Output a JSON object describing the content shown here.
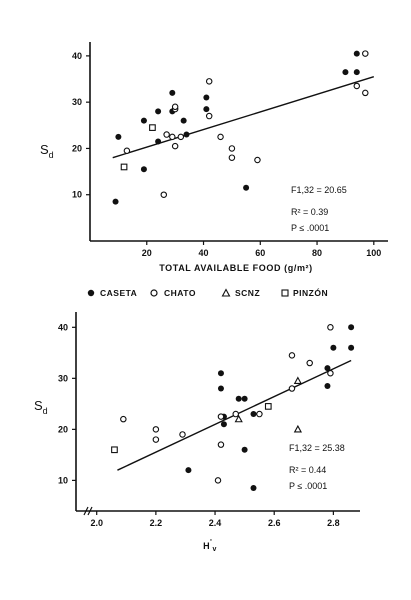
{
  "legend": [
    {
      "label": "CASETA",
      "marker": "filled-circle"
    },
    {
      "label": "CHATO",
      "marker": "open-circle"
    },
    {
      "label": "SCNZ",
      "marker": "open-triangle"
    },
    {
      "label": "PINZÓN",
      "marker": "open-square"
    }
  ],
  "chart_data": [
    {
      "type": "scatter",
      "title": "",
      "xlabel": "TOTAL AVAILABLE FOOD (g/m²)",
      "ylabel": "Sd",
      "xlim": [
        0,
        105
      ],
      "ylim": [
        0,
        43
      ],
      "xticks": [
        20,
        40,
        60,
        80,
        100
      ],
      "yticks": [
        10,
        20,
        30,
        40
      ],
      "xticklabels": [
        "20",
        "40",
        "60",
        "80",
        "100"
      ],
      "yticklabels": [
        "10",
        "20",
        "30",
        "40"
      ],
      "grid": false,
      "stats": {
        "F": "F1,32 = 20.65",
        "R2": "R² = 0.39",
        "P": "P ≤ .0001"
      },
      "fit_line": {
        "x": [
          8,
          100
        ],
        "y": [
          18,
          35.5
        ]
      },
      "series": [
        {
          "name": "CASETA",
          "marker": "filled-circle",
          "points": [
            [
              9,
              8.5
            ],
            [
              10,
              22.5
            ],
            [
              19,
              26
            ],
            [
              19,
              15.5
            ],
            [
              24,
              28
            ],
            [
              24,
              21.5
            ],
            [
              29,
              28
            ],
            [
              29,
              32
            ],
            [
              33,
              26
            ],
            [
              34,
              23
            ],
            [
              41,
              31
            ],
            [
              41,
              28.5
            ],
            [
              55,
              11.5
            ],
            [
              90,
              36.5
            ],
            [
              94,
              40.5
            ],
            [
              94,
              36.5
            ]
          ]
        },
        {
          "name": "CHATO",
          "marker": "open-circle",
          "points": [
            [
              13,
              19.5
            ],
            [
              26,
              10
            ],
            [
              27,
              23
            ],
            [
              29,
              22.5
            ],
            [
              30,
              20.5
            ],
            [
              30,
              28.5
            ],
            [
              30,
              29
            ],
            [
              32,
              22.5
            ],
            [
              42,
              34.5
            ],
            [
              42,
              27
            ],
            [
              46,
              22.5
            ],
            [
              50,
              20
            ],
            [
              50,
              18
            ],
            [
              59,
              17.5
            ],
            [
              94,
              33.5
            ],
            [
              97,
              40.5
            ],
            [
              97,
              32
            ]
          ]
        },
        {
          "name": "PINZÓN",
          "marker": "open-square",
          "points": [
            [
              12,
              16
            ],
            [
              22,
              24.5
            ]
          ]
        }
      ]
    },
    {
      "type": "scatter",
      "title": "",
      "xlabel": "H'v",
      "ylabel": "Sd",
      "xlim": [
        1.93,
        2.89
      ],
      "ylim": [
        4,
        43
      ],
      "xticks": [
        2.0,
        2.2,
        2.4,
        2.6,
        2.8
      ],
      "yticks": [
        10,
        20,
        30,
        40
      ],
      "xticklabels": [
        "2.0",
        "2.2",
        "2.4",
        "2.6",
        "2.8"
      ],
      "yticklabels": [
        "10",
        "20",
        "30",
        "40"
      ],
      "grid": false,
      "stats": {
        "F": "F1,32 = 25.38",
        "R2": "R² = 0.44",
        "P": "P ≤ .0001"
      },
      "fit_line": {
        "x": [
          2.07,
          2.86
        ],
        "y": [
          12,
          33.5
        ]
      },
      "series": [
        {
          "name": "CASETA",
          "marker": "filled-circle",
          "points": [
            [
              2.31,
              12
            ],
            [
              2.42,
              31
            ],
            [
              2.42,
              28
            ],
            [
              2.43,
              22.5
            ],
            [
              2.43,
              21
            ],
            [
              2.48,
              26
            ],
            [
              2.5,
              26
            ],
            [
              2.5,
              16
            ],
            [
              2.53,
              8.5
            ],
            [
              2.53,
              23
            ],
            [
              2.78,
              32
            ],
            [
              2.78,
              28.5
            ],
            [
              2.8,
              36
            ],
            [
              2.86,
              40
            ],
            [
              2.86,
              36
            ]
          ]
        },
        {
          "name": "CHATO",
          "marker": "open-circle",
          "points": [
            [
              2.09,
              22
            ],
            [
              2.2,
              20
            ],
            [
              2.2,
              18
            ],
            [
              2.29,
              19
            ],
            [
              2.41,
              10
            ],
            [
              2.42,
              17
            ],
            [
              2.42,
              22.5
            ],
            [
              2.47,
              23
            ],
            [
              2.55,
              23
            ],
            [
              2.66,
              34.5
            ],
            [
              2.66,
              28
            ],
            [
              2.72,
              33
            ],
            [
              2.79,
              40
            ],
            [
              2.79,
              31
            ]
          ]
        },
        {
          "name": "SCNZ",
          "marker": "open-triangle",
          "points": [
            [
              2.48,
              22
            ],
            [
              2.68,
              29.5
            ],
            [
              2.68,
              20
            ]
          ]
        },
        {
          "name": "PINZÓN",
          "marker": "open-square",
          "points": [
            [
              2.06,
              16
            ],
            [
              2.58,
              24.5
            ]
          ]
        }
      ]
    }
  ]
}
